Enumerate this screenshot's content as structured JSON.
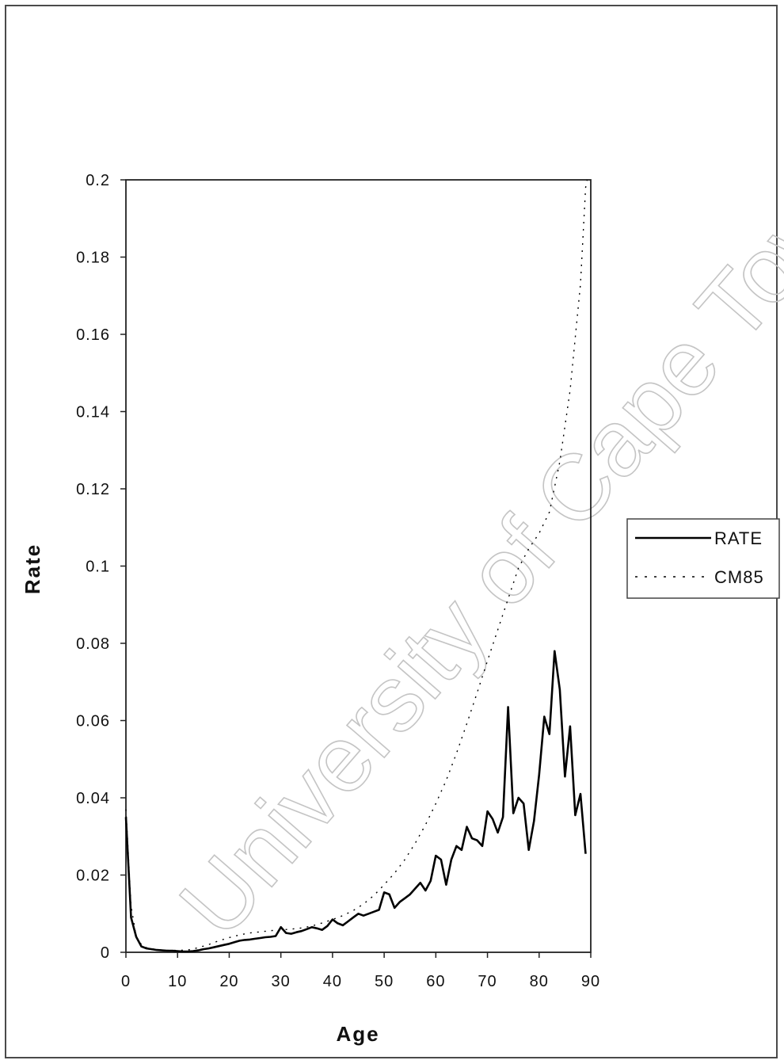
{
  "watermark": "University of Cape Town",
  "chart_data": {
    "type": "line",
    "title": "",
    "xlabel": "Age",
    "ylabel": "Rate",
    "xlim": [
      0,
      90
    ],
    "ylim": [
      0,
      0.2
    ],
    "x_ticks": [
      "0",
      "10",
      "20",
      "30",
      "40",
      "50",
      "60",
      "70",
      "80",
      "90"
    ],
    "y_ticks": [
      "0",
      "0.02",
      "0.04",
      "0.06",
      "0.08",
      "0.1",
      "0.12",
      "0.14",
      "0.16",
      "0.18",
      "0.2"
    ],
    "grid": false,
    "legend_position": "right",
    "series": [
      {
        "name": "RATE",
        "style": "solid",
        "color": "#000000",
        "points": [
          [
            0,
            0.035
          ],
          [
            1,
            0.009
          ],
          [
            2,
            0.004
          ],
          [
            3,
            0.0015
          ],
          [
            4,
            0.001
          ],
          [
            5,
            0.0008
          ],
          [
            6,
            0.0006
          ],
          [
            7,
            0.0005
          ],
          [
            8,
            0.0004
          ],
          [
            9,
            0.0004
          ],
          [
            10,
            0.0003
          ],
          [
            11,
            0.0002
          ],
          [
            12,
            0.0002
          ],
          [
            13,
            0.0003
          ],
          [
            14,
            0.0005
          ],
          [
            15,
            0.0008
          ],
          [
            16,
            0.001
          ],
          [
            17,
            0.0013
          ],
          [
            18,
            0.0016
          ],
          [
            19,
            0.0019
          ],
          [
            20,
            0.0022
          ],
          [
            21,
            0.0026
          ],
          [
            22,
            0.003
          ],
          [
            23,
            0.0032
          ],
          [
            24,
            0.0033
          ],
          [
            25,
            0.0035
          ],
          [
            26,
            0.0037
          ],
          [
            27,
            0.0039
          ],
          [
            28,
            0.004
          ],
          [
            29,
            0.0042
          ],
          [
            30,
            0.0065
          ],
          [
            31,
            0.005
          ],
          [
            32,
            0.0048
          ],
          [
            33,
            0.0052
          ],
          [
            34,
            0.0055
          ],
          [
            35,
            0.006
          ],
          [
            36,
            0.0065
          ],
          [
            37,
            0.0062
          ],
          [
            38,
            0.0058
          ],
          [
            39,
            0.0068
          ],
          [
            40,
            0.0085
          ],
          [
            41,
            0.0075
          ],
          [
            42,
            0.007
          ],
          [
            43,
            0.008
          ],
          [
            44,
            0.009
          ],
          [
            45,
            0.01
          ],
          [
            46,
            0.0095
          ],
          [
            47,
            0.01
          ],
          [
            48,
            0.0105
          ],
          [
            49,
            0.011
          ],
          [
            50,
            0.0155
          ],
          [
            51,
            0.015
          ],
          [
            52,
            0.0115
          ],
          [
            53,
            0.013
          ],
          [
            54,
            0.014
          ],
          [
            55,
            0.015
          ],
          [
            56,
            0.0165
          ],
          [
            57,
            0.018
          ],
          [
            58,
            0.016
          ],
          [
            59,
            0.0185
          ],
          [
            60,
            0.025
          ],
          [
            61,
            0.024
          ],
          [
            62,
            0.0175
          ],
          [
            63,
            0.024
          ],
          [
            64,
            0.0275
          ],
          [
            65,
            0.0265
          ],
          [
            66,
            0.0325
          ],
          [
            67,
            0.0295
          ],
          [
            68,
            0.029
          ],
          [
            69,
            0.0275
          ],
          [
            70,
            0.0365
          ],
          [
            71,
            0.0345
          ],
          [
            72,
            0.031
          ],
          [
            73,
            0.035
          ],
          [
            74,
            0.0635
          ],
          [
            75,
            0.036
          ],
          [
            76,
            0.04
          ],
          [
            77,
            0.0385
          ],
          [
            78,
            0.0265
          ],
          [
            79,
            0.034
          ],
          [
            80,
            0.046
          ],
          [
            81,
            0.061
          ],
          [
            82,
            0.0565
          ],
          [
            83,
            0.078
          ],
          [
            84,
            0.068
          ],
          [
            85,
            0.0455
          ],
          [
            86,
            0.0585
          ],
          [
            87,
            0.0355
          ],
          [
            88,
            0.041
          ],
          [
            89,
            0.0255
          ]
        ]
      },
      {
        "name": "CM85",
        "style": "dotted",
        "color": "#000000",
        "points": [
          [
            0,
            0.037
          ],
          [
            1,
            0.012
          ],
          [
            2,
            0.004
          ],
          [
            3,
            0.002
          ],
          [
            4,
            0.0012
          ],
          [
            5,
            0.0009
          ],
          [
            6,
            0.0007
          ],
          [
            7,
            0.0006
          ],
          [
            8,
            0.0005
          ],
          [
            9,
            0.0005
          ],
          [
            10,
            0.0005
          ],
          [
            12,
            0.0006
          ],
          [
            14,
            0.0012
          ],
          [
            16,
            0.002
          ],
          [
            18,
            0.003
          ],
          [
            20,
            0.0038
          ],
          [
            22,
            0.0045
          ],
          [
            24,
            0.005
          ],
          [
            26,
            0.0053
          ],
          [
            28,
            0.0056
          ],
          [
            30,
            0.0058
          ],
          [
            32,
            0.006
          ],
          [
            34,
            0.0063
          ],
          [
            36,
            0.0068
          ],
          [
            38,
            0.0076
          ],
          [
            40,
            0.0085
          ],
          [
            42,
            0.0095
          ],
          [
            44,
            0.0108
          ],
          [
            46,
            0.0125
          ],
          [
            48,
            0.0147
          ],
          [
            50,
            0.0175
          ],
          [
            52,
            0.0205
          ],
          [
            54,
            0.024
          ],
          [
            56,
            0.0282
          ],
          [
            58,
            0.033
          ],
          [
            60,
            0.0385
          ],
          [
            62,
            0.0445
          ],
          [
            64,
            0.0515
          ],
          [
            66,
            0.0592
          ],
          [
            68,
            0.0672
          ],
          [
            70,
            0.0755
          ],
          [
            72,
            0.0835
          ],
          [
            74,
            0.0915
          ],
          [
            76,
            0.0995
          ],
          [
            78,
            0.1045
          ],
          [
            80,
            0.1085
          ],
          [
            82,
            0.114
          ],
          [
            84,
            0.127
          ],
          [
            86,
            0.1455
          ],
          [
            88,
            0.173
          ],
          [
            89,
            0.198
          ],
          [
            89.3,
            0.2
          ]
        ]
      }
    ]
  }
}
